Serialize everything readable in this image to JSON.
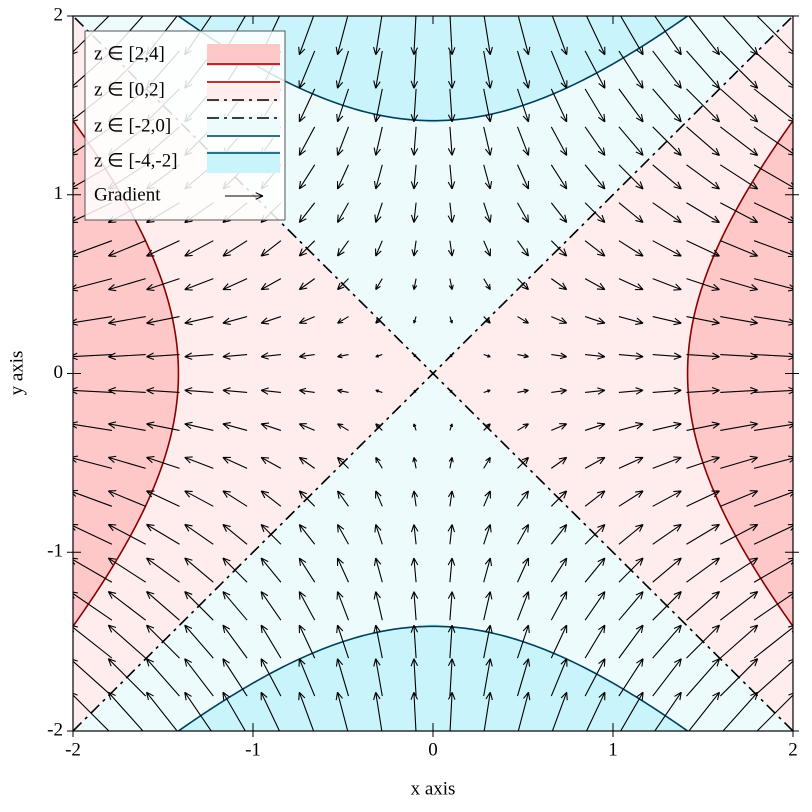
{
  "chart_data": {
    "type": "contour-vector",
    "x_label": "x axis",
    "y_label": "y axis",
    "xlim": [
      -2,
      2
    ],
    "ylim": [
      -2,
      2
    ],
    "xticks": [
      -2,
      -1,
      0,
      1,
      2
    ],
    "yticks": [
      -2,
      -1,
      0,
      1,
      2
    ],
    "levels": [
      -4,
      -2,
      0,
      2,
      4
    ],
    "intervals": [
      {
        "name": "z ∈ [2,4]",
        "color": "#ffc8c8"
      },
      {
        "name": "z ∈ [0,2]",
        "color": "#ffecec"
      },
      {
        "name": "z ∈ [-2,0]",
        "color": "#eefbfd"
      },
      {
        "name": "z ∈ [-4,-2]",
        "color": "#c9f4fb"
      }
    ],
    "line_colors": [
      "#00405a",
      "#000000",
      "#8b0000"
    ],
    "line_styles": [
      "solid",
      "dashdot",
      "solid"
    ],
    "field": {
      "name": "Gradient",
      "color": "#000000",
      "x": [
        -1.9,
        -1.7,
        -1.5,
        -1.3,
        -1.1,
        -0.9,
        -0.7,
        -0.5,
        -0.3,
        -0.1,
        0.1,
        0.3,
        0.5,
        0.7,
        0.9,
        1.1,
        1.3,
        1.5,
        1.7,
        1.9
      ],
      "y": [
        -1.9,
        -1.7,
        -1.5,
        -1.3,
        -1.1,
        -0.9,
        -0.7,
        -0.5,
        -0.3,
        -0.1,
        0.1,
        0.3,
        0.5,
        0.7,
        0.9,
        1.1,
        1.3,
        1.5,
        1.7,
        1.9
      ],
      "u": [
        -3.8,
        -3.4,
        -3,
        -2.6,
        -2.2,
        -1.8,
        -1.4,
        -1,
        -0.6,
        -0.2,
        0.2,
        0.6,
        1,
        1.4,
        1.8,
        2.2,
        2.6,
        3,
        3.4,
        3.8
      ],
      "v": [
        3.8,
        3.4,
        3,
        2.6,
        2.2,
        1.8,
        1.4,
        1,
        0.6,
        0.2,
        -0.2,
        -0.6,
        -1,
        -1.4,
        -1.8,
        -2.2,
        -2.6,
        -3,
        -3.4,
        -3.8
      ]
    }
  }
}
